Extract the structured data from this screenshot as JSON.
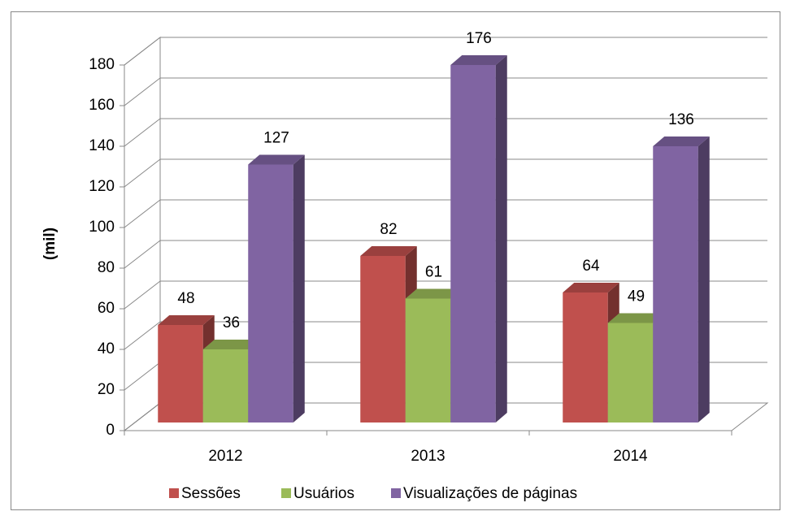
{
  "chart_data": {
    "type": "bar3d",
    "y_label": "(mil)",
    "categories": [
      "2012",
      "2013",
      "2014"
    ],
    "series": [
      {
        "name": "Sessões",
        "color": "#c0504d",
        "values": [
          48,
          82,
          64
        ]
      },
      {
        "name": "Usuários",
        "color": "#9bbb59",
        "values": [
          36,
          61,
          49
        ]
      },
      {
        "name": "Visualizações de páginas",
        "color": "#8064a2",
        "values": [
          127,
          176,
          136
        ]
      }
    ],
    "ylim": [
      0,
      180
    ],
    "yticks": [
      0,
      20,
      40,
      60,
      80,
      100,
      120,
      140,
      160,
      180
    ],
    "grid": true
  }
}
